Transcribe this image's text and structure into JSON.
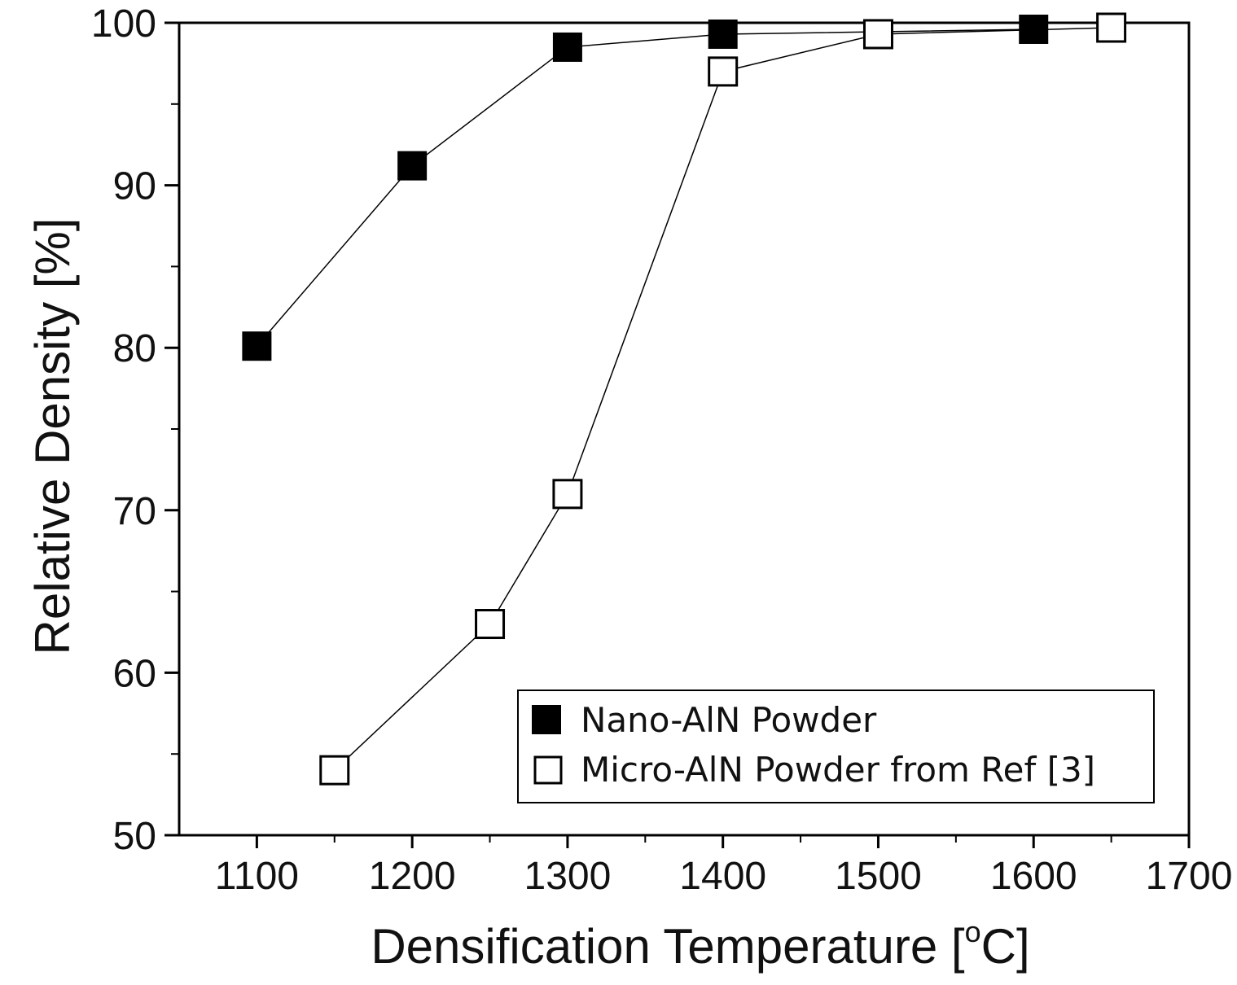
{
  "chart_data": {
    "type": "line",
    "xlabel": "Densification Temperature [",
    "xlabel_sup": "o",
    "xlabel_end": "C]",
    "ylabel": "Relative Density [%]",
    "xlim": [
      1050,
      1700
    ],
    "ylim": [
      50,
      100
    ],
    "x_ticks": [
      "1100",
      "1200",
      "1300",
      "1400",
      "1500",
      "1600",
      "1700"
    ],
    "x_tick_values": [
      1100,
      1200,
      1300,
      1400,
      1500,
      1600,
      1700
    ],
    "x_minor_tick_values": [
      1150,
      1250,
      1350,
      1450,
      1550,
      1650
    ],
    "y_ticks": [
      "50",
      "60",
      "70",
      "80",
      "90",
      "100"
    ],
    "y_tick_values": [
      50,
      60,
      70,
      80,
      90,
      100
    ],
    "y_minor_tick_values": [
      55,
      65,
      75,
      85,
      95
    ],
    "grid": false,
    "legend_position": "bottom-right",
    "series": [
      {
        "name": "Nano-AlN Powder",
        "marker": "filled-square",
        "color": "#000000",
        "x": [
          1100,
          1200,
          1300,
          1400,
          1600
        ],
        "y": [
          80.1,
          91.2,
          98.5,
          99.3,
          99.6
        ]
      },
      {
        "name": "Micro-AlN Powder from Ref [3]",
        "marker": "open-square",
        "color": "#000000",
        "x": [
          1150,
          1250,
          1300,
          1400,
          1500,
          1650
        ],
        "y": [
          54.0,
          63.0,
          71.0,
          97.0,
          99.3,
          99.7
        ]
      }
    ]
  }
}
